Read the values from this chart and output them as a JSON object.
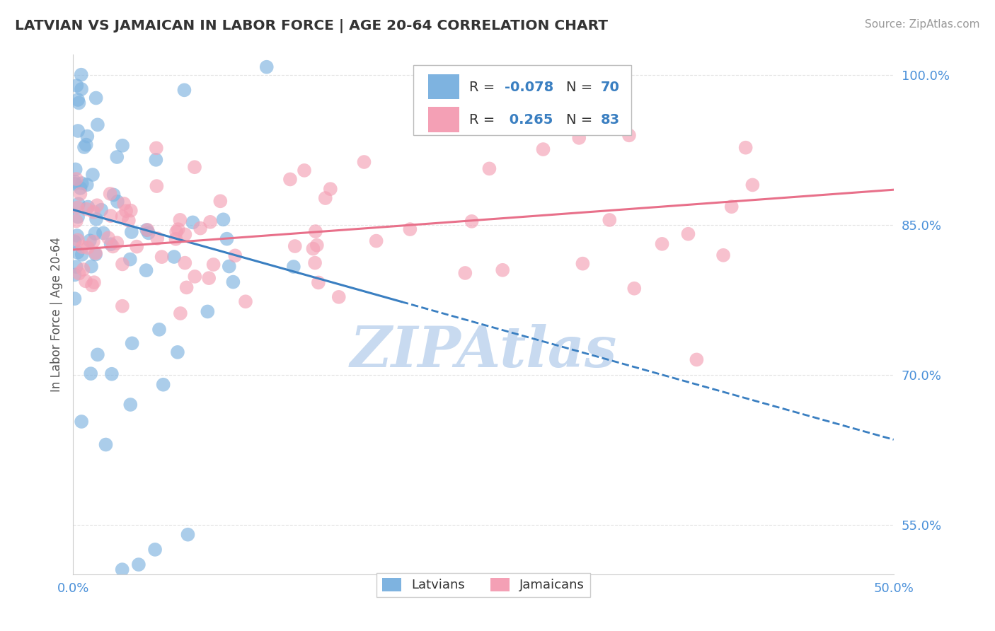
{
  "title": "LATVIAN VS JAMAICAN IN LABOR FORCE | AGE 20-64 CORRELATION CHART",
  "source_text": "Source: ZipAtlas.com",
  "ylabel": "In Labor Force | Age 20-64",
  "xlim": [
    0.0,
    50.0
  ],
  "ylim": [
    50.0,
    102.0
  ],
  "yticks": [
    55.0,
    70.0,
    85.0,
    100.0
  ],
  "ytick_labels": [
    "55.0%",
    "70.0%",
    "85.0%",
    "100.0%"
  ],
  "xticks": [
    0.0,
    50.0
  ],
  "xtick_labels": [
    "0.0%",
    "50.0%"
  ],
  "latvian_R": -0.078,
  "latvian_N": 70,
  "jamaican_R": 0.265,
  "jamaican_N": 83,
  "latvian_color": "#7eb3e0",
  "jamaican_color": "#f4a0b5",
  "latvian_line_color": "#3a7fc1",
  "jamaican_line_color": "#e8708a",
  "watermark_text": "ZIPAtlas",
  "watermark_color": "#c8daf0",
  "background_color": "#ffffff",
  "grid_color": "#dddddd",
  "title_color": "#333333",
  "axis_label_color": "#555555",
  "tick_label_color": "#4a90d9",
  "source_color": "#999999",
  "lv_trend_x0": 0.0,
  "lv_trend_y0": 86.5,
  "lv_trend_x1": 50.0,
  "lv_trend_y1": 63.5,
  "lv_solid_end": 20.0,
  "jm_trend_x0": 0.0,
  "jm_trend_y0": 82.5,
  "jm_trend_x1": 50.0,
  "jm_trend_y1": 88.5
}
